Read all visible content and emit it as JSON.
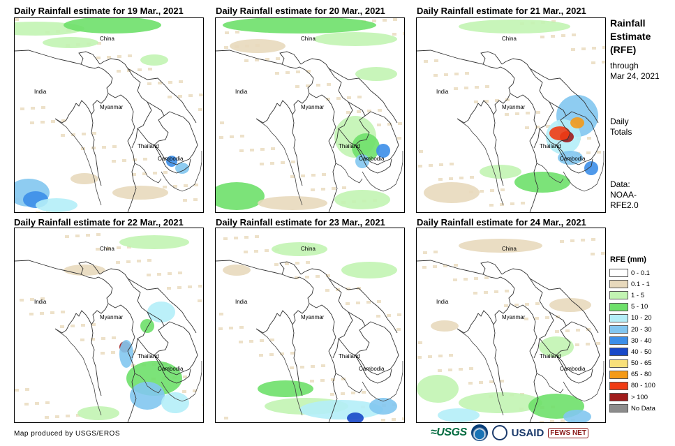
{
  "panels": [
    {
      "title": "Daily Rainfall estimate for 19 Mar., 2021",
      "labels": {
        "china": "China",
        "india": "India",
        "myanmar": "Myanmar",
        "thailand": "Thailand",
        "cambodia": "Cambodia"
      }
    },
    {
      "title": "Daily Rainfall estimate for 20 Mar., 2021",
      "labels": {
        "china": "China",
        "india": "India",
        "myanmar": "Myanmar",
        "thailand": "Thailand",
        "cambodia": "Cambodia"
      }
    },
    {
      "title": "Daily Rainfall estimate for 21 Mar., 2021",
      "labels": {
        "china": "China",
        "india": "India",
        "myanmar": "Myanmar",
        "thailand": "Thailand",
        "cambodia": "Cambodia"
      }
    },
    {
      "title": "Daily Rainfall estimate for 22 Mar., 2021",
      "labels": {
        "china": "China",
        "india": "India",
        "myanmar": "Myanmar",
        "thailand": "Thailand",
        "cambodia": "Cambodia"
      }
    },
    {
      "title": "Daily Rainfall estimate for 23 Mar., 2021",
      "labels": {
        "china": "China",
        "india": "India",
        "myanmar": "Myanmar",
        "thailand": "Thailand",
        "cambodia": "Cambodia"
      }
    },
    {
      "title": "Daily Rainfall estimate for 24 Mar., 2021",
      "labels": {
        "china": "China",
        "india": "India",
        "myanmar": "Myanmar",
        "thailand": "Thailand",
        "cambodia": "Cambodia"
      }
    }
  ],
  "sidebar": {
    "title_line1": "Rainfall",
    "title_line2": "Estimate",
    "title_line3": "(RFE)",
    "through": "through",
    "date": "Mar 24, 2021",
    "daily": "Daily",
    "totals": "Totals",
    "data_label": "Data:",
    "data_src1": "NOAA-",
    "data_src2": "RFE2.0"
  },
  "legend": {
    "title": "RFE (mm)",
    "items": [
      {
        "label": "0 - 0.1",
        "color": "#ffffff"
      },
      {
        "label": "0.1 - 1",
        "color": "#e8d9bc"
      },
      {
        "label": "1 - 5",
        "color": "#c2f4b2"
      },
      {
        "label": "5 - 10",
        "color": "#6ee06a"
      },
      {
        "label": "10 - 20",
        "color": "#b4eef8"
      },
      {
        "label": "20 - 30",
        "color": "#82c6f0"
      },
      {
        "label": "30 - 40",
        "color": "#3c8ee8"
      },
      {
        "label": "40 - 50",
        "color": "#1848c8"
      },
      {
        "label": "50 - 65",
        "color": "#f8e07a"
      },
      {
        "label": "65 - 80",
        "color": "#f49a18"
      },
      {
        "label": "80 - 100",
        "color": "#f03c14"
      },
      {
        "label": "> 100",
        "color": "#a01c1c"
      },
      {
        "label": "No Data",
        "color": "#8c8c8c"
      }
    ]
  },
  "footer": {
    "credit": "Map produced by USGS/EROS",
    "logo_usgs": "≈USGS",
    "logo_usaid": "USAID",
    "logo_fews": "FEWS NET"
  }
}
